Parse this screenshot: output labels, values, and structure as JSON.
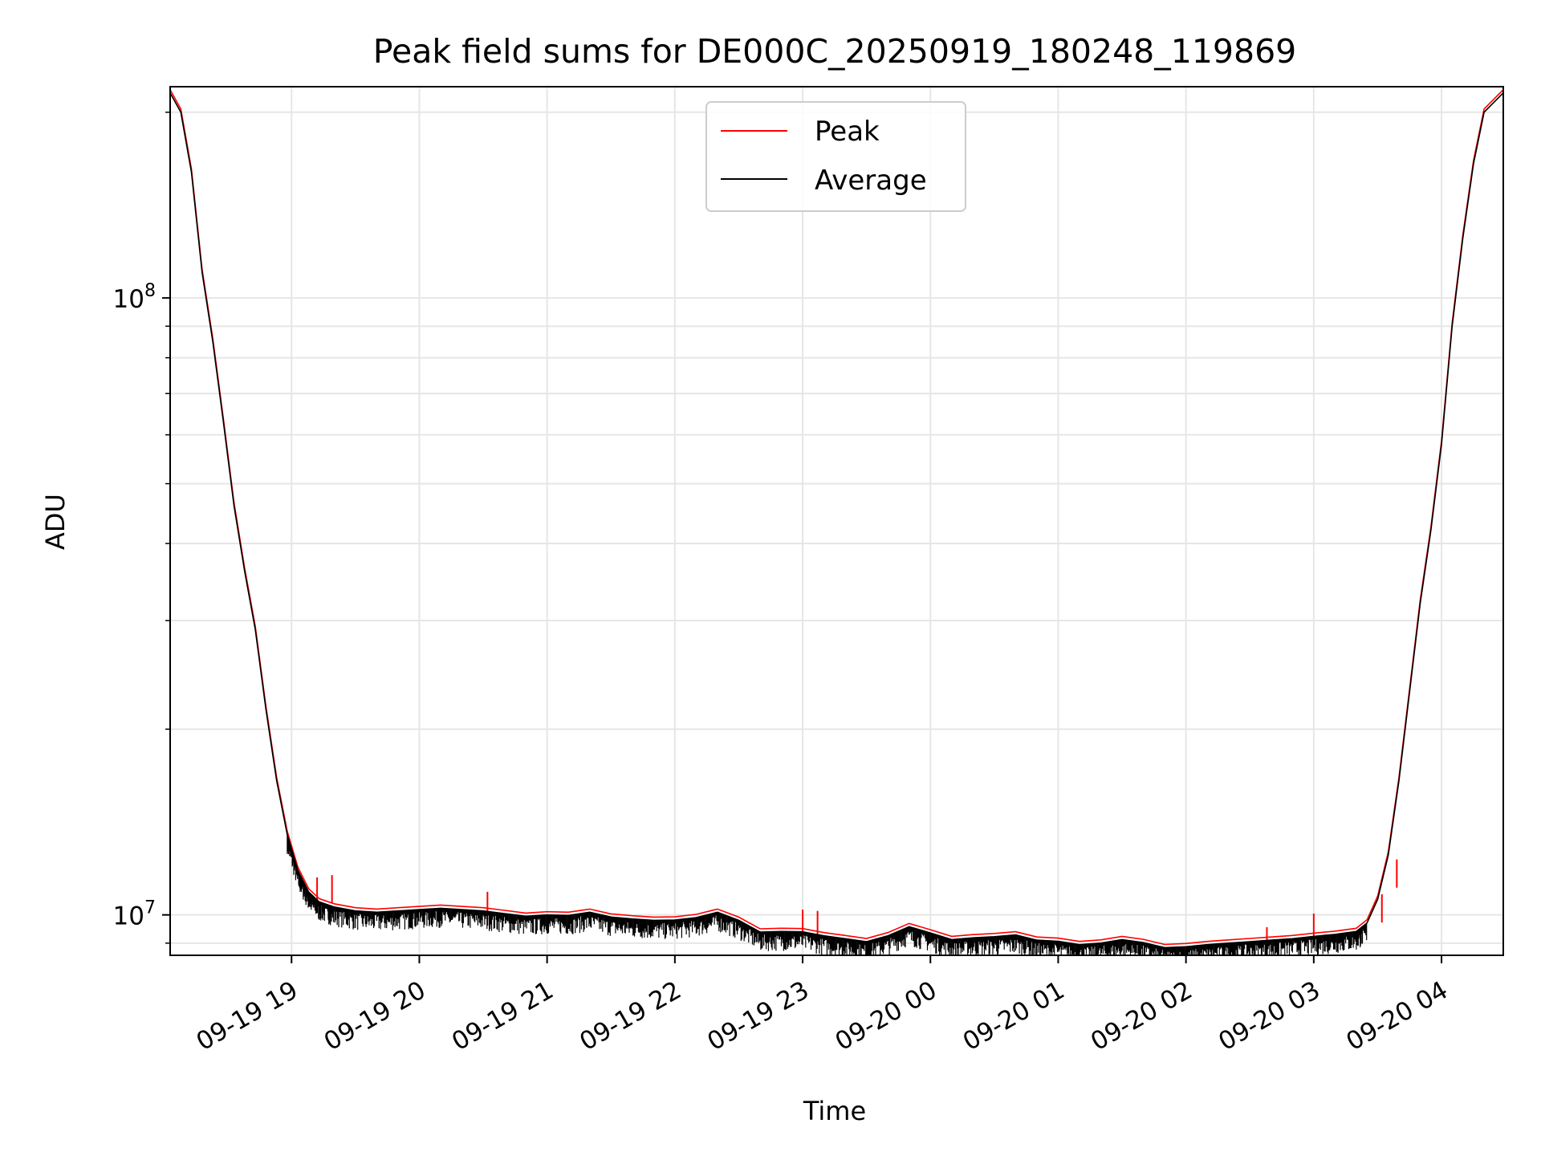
{
  "chart_data": {
    "type": "line",
    "title": "Peak field sums for DE000C_20250919_180248_119869",
    "xlabel": "Time",
    "ylabel": "ADU",
    "y_scale": "log",
    "ylim": [
      8600000,
      220000000
    ],
    "xlim": [
      "2025-09-19 18:03",
      "2025-09-20 04:29"
    ],
    "grid": true,
    "legend_position": "upper center",
    "x_tick_labels": [
      "09-19 19",
      "09-19 20",
      "09-19 21",
      "09-19 22",
      "09-19 23",
      "09-20 00",
      "09-20 01",
      "09-20 02",
      "09-20 03",
      "09-20 04"
    ],
    "x_tick_values": [
      "2025-09-19 19:00",
      "2025-09-19 20:00",
      "2025-09-19 21:00",
      "2025-09-19 22:00",
      "2025-09-19 23:00",
      "2025-09-20 00:00",
      "2025-09-20 01:00",
      "2025-09-20 02:00",
      "2025-09-20 03:00",
      "2025-09-20 04:00"
    ],
    "y_major_ticks": [
      {
        "value": 10000000,
        "base": "10",
        "exp": "7"
      },
      {
        "value": 100000000,
        "base": "10",
        "exp": "8"
      }
    ],
    "y_minor_ticks": [
      9000000,
      20000000,
      30000000,
      40000000,
      50000000,
      60000000,
      70000000,
      80000000,
      90000000,
      200000000
    ],
    "series": [
      {
        "name": "Average",
        "color": "#000000",
        "points": [
          [
            "2025-09-19 18:03",
            215000000
          ],
          [
            "2025-09-19 18:08",
            200000000
          ],
          [
            "2025-09-19 18:13",
            160000000
          ],
          [
            "2025-09-19 18:18",
            110000000
          ],
          [
            "2025-09-19 18:23",
            85000000
          ],
          [
            "2025-09-19 18:28",
            63000000
          ],
          [
            "2025-09-19 18:33",
            46000000
          ],
          [
            "2025-09-19 18:38",
            36000000
          ],
          [
            "2025-09-19 18:43",
            29000000
          ],
          [
            "2025-09-19 18:48",
            21500000
          ],
          [
            "2025-09-19 18:53",
            16500000
          ],
          [
            "2025-09-19 18:58",
            13500000
          ],
          [
            "2025-09-19 19:03",
            11800000
          ],
          [
            "2025-09-19 19:08",
            10900000
          ],
          [
            "2025-09-19 19:13",
            10500000
          ],
          [
            "2025-09-19 19:20",
            10300000
          ],
          [
            "2025-09-19 19:30",
            10150000
          ],
          [
            "2025-09-19 19:40",
            10100000
          ],
          [
            "2025-09-19 19:50",
            10150000
          ],
          [
            "2025-09-19 20:00",
            10200000
          ],
          [
            "2025-09-19 20:10",
            10250000
          ],
          [
            "2025-09-19 20:20",
            10200000
          ],
          [
            "2025-09-19 20:30",
            10150000
          ],
          [
            "2025-09-19 20:40",
            10050000
          ],
          [
            "2025-09-19 20:50",
            9950000
          ],
          [
            "2025-09-19 21:00",
            10000000
          ],
          [
            "2025-09-19 21:10",
            9980000
          ],
          [
            "2025-09-19 21:20",
            10100000
          ],
          [
            "2025-09-19 21:30",
            9920000
          ],
          [
            "2025-09-19 21:40",
            9850000
          ],
          [
            "2025-09-19 21:50",
            9800000
          ],
          [
            "2025-09-19 22:00",
            9810000
          ],
          [
            "2025-09-19 22:10",
            9900000
          ],
          [
            "2025-09-19 22:20",
            10100000
          ],
          [
            "2025-09-19 22:30",
            9800000
          ],
          [
            "2025-09-19 22:40",
            9380000
          ],
          [
            "2025-09-19 22:50",
            9400000
          ],
          [
            "2025-09-19 23:00",
            9390000
          ],
          [
            "2025-09-19 23:10",
            9250000
          ],
          [
            "2025-09-19 23:20",
            9150000
          ],
          [
            "2025-09-19 23:30",
            9050000
          ],
          [
            "2025-09-19 23:40",
            9250000
          ],
          [
            "2025-09-19 23:50",
            9570000
          ],
          [
            "2025-09-20 00:00",
            9350000
          ],
          [
            "2025-09-20 00:10",
            9120000
          ],
          [
            "2025-09-20 00:20",
            9180000
          ],
          [
            "2025-09-20 00:30",
            9220000
          ],
          [
            "2025-09-20 00:40",
            9280000
          ],
          [
            "2025-09-20 00:50",
            9100000
          ],
          [
            "2025-09-20 01:00",
            9060000
          ],
          [
            "2025-09-20 01:10",
            8950000
          ],
          [
            "2025-09-20 01:20",
            9000000
          ],
          [
            "2025-09-20 01:30",
            9120000
          ],
          [
            "2025-09-20 01:40",
            9020000
          ],
          [
            "2025-09-20 01:50",
            8850000
          ],
          [
            "2025-09-20 02:00",
            8880000
          ],
          [
            "2025-09-20 02:10",
            8950000
          ],
          [
            "2025-09-20 02:20",
            9000000
          ],
          [
            "2025-09-20 02:30",
            9050000
          ],
          [
            "2025-09-20 02:40",
            9100000
          ],
          [
            "2025-09-20 02:50",
            9150000
          ],
          [
            "2025-09-20 03:00",
            9230000
          ],
          [
            "2025-09-20 03:10",
            9300000
          ],
          [
            "2025-09-20 03:20",
            9400000
          ],
          [
            "2025-09-20 03:25",
            9700000
          ],
          [
            "2025-09-20 03:30",
            10600000
          ],
          [
            "2025-09-20 03:35",
            12500000
          ],
          [
            "2025-09-20 03:40",
            16500000
          ],
          [
            "2025-09-20 03:45",
            23000000
          ],
          [
            "2025-09-20 03:50",
            32000000
          ],
          [
            "2025-09-20 03:55",
            42000000
          ],
          [
            "2025-09-20 04:00",
            58000000
          ],
          [
            "2025-09-20 04:05",
            90000000
          ],
          [
            "2025-09-20 04:10",
            125000000
          ],
          [
            "2025-09-20 04:15",
            165000000
          ],
          [
            "2025-09-20 04:20",
            200000000
          ],
          [
            "2025-09-20 04:29",
            215000000
          ]
        ]
      },
      {
        "name": "Peak",
        "color": "#ff0000",
        "note_shape": "follows Average closely with spikes above",
        "spikes": [
          [
            "2025-09-19 19:12",
            11500000
          ],
          [
            "2025-09-19 19:19",
            11600000
          ],
          [
            "2025-09-19 20:32",
            10900000
          ],
          [
            "2025-09-19 23:00",
            10200000
          ],
          [
            "2025-09-19 23:07",
            10150000
          ],
          [
            "2025-09-20 02:38",
            9550000
          ],
          [
            "2025-09-20 03:00",
            10050000
          ],
          [
            "2025-09-20 03:32",
            10800000
          ],
          [
            "2025-09-20 03:39",
            12300000
          ]
        ]
      }
    ]
  }
}
